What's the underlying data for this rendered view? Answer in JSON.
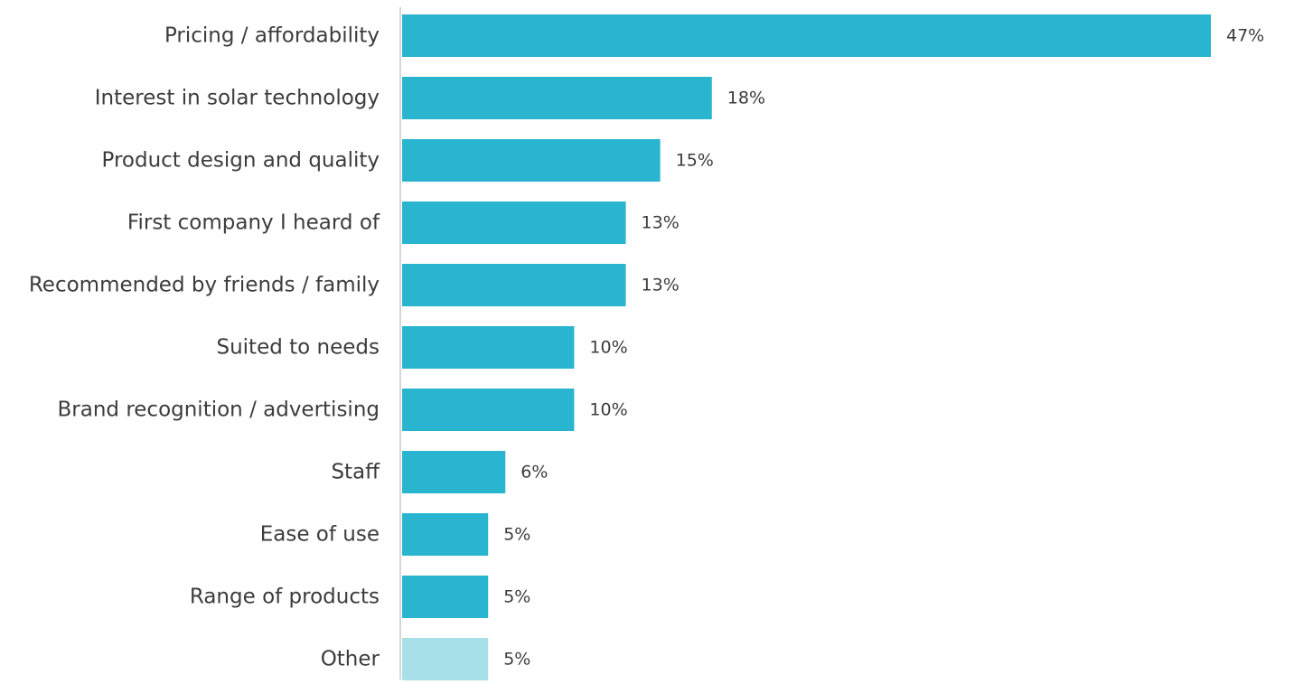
{
  "chart_data": {
    "type": "bar",
    "orientation": "horizontal",
    "categories": [
      "Pricing / affordability",
      "Interest in solar technology",
      "Product design and quality",
      "First company I heard of",
      "Recommended by friends / family",
      "Suited to needs",
      "Brand recognition / advertising",
      "Staff",
      "Ease of use",
      "Range of products",
      "Other"
    ],
    "values": [
      47,
      18,
      15,
      13,
      13,
      10,
      10,
      6,
      5,
      5,
      5
    ],
    "value_labels": [
      "47%",
      "18%",
      "15%",
      "13%",
      "13%",
      "10%",
      "10%",
      "6%",
      "5%",
      "5%",
      "5%"
    ],
    "unit": "%",
    "xlim": [
      0,
      47
    ],
    "grid": false,
    "title": "",
    "xlabel": "",
    "ylabel": "",
    "colors": {
      "bar": "#29b5cf",
      "bar_other": "#a8e0ea",
      "axis": "#d6d6d6",
      "text": "#3c3c3c"
    }
  }
}
